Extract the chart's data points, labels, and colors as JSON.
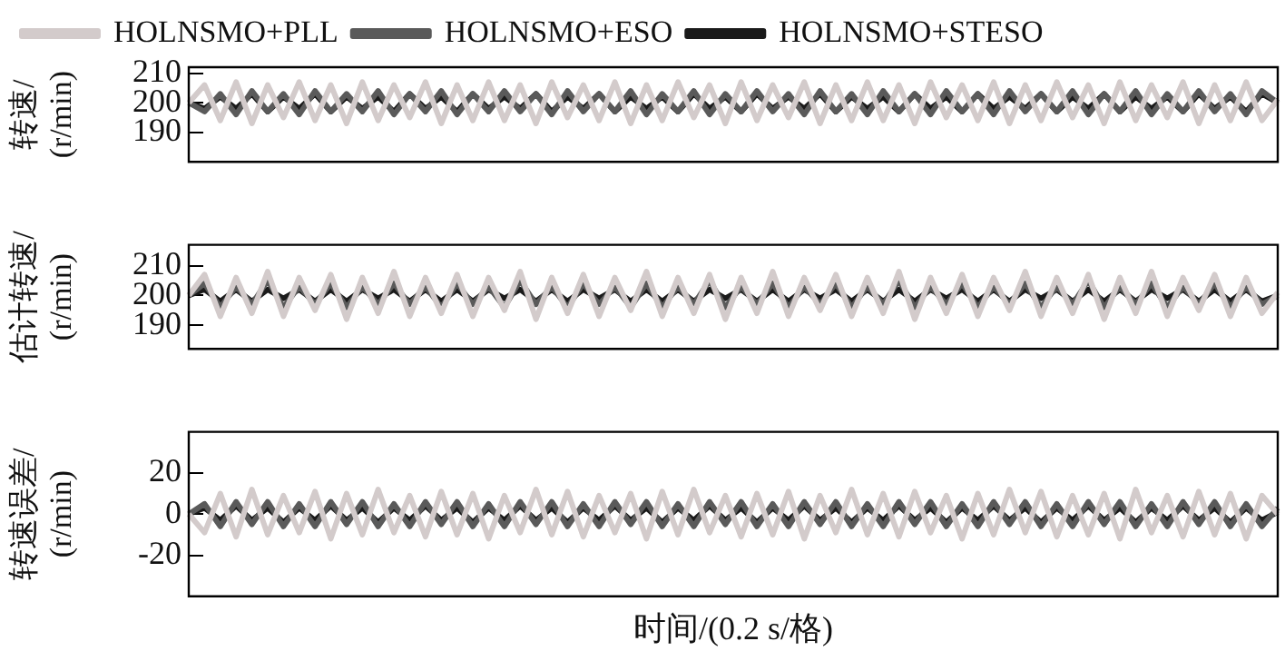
{
  "chart_data": [
    {
      "type": "line",
      "ylabel": "转速/\n(r/min)",
      "categories": [
        null,
        null,
        null,
        null,
        null,
        null,
        null,
        null,
        null,
        null,
        null,
        null,
        null,
        null,
        null,
        null,
        null,
        null,
        null,
        null,
        null,
        null,
        null,
        null,
        null,
        null,
        null,
        null,
        null,
        null,
        null,
        null,
        null,
        null,
        null,
        null,
        null,
        null,
        null,
        null,
        null,
        null,
        null,
        null,
        null,
        null,
        null,
        null,
        null,
        null,
        null,
        null,
        null,
        null,
        null,
        null,
        null,
        null,
        null,
        null,
        null,
        null,
        null,
        null,
        null,
        null,
        null,
        null,
        null,
        null
      ],
      "ylim": [
        180,
        212
      ],
      "yticks": [
        190,
        200,
        210
      ],
      "tick_labels": "y",
      "legend": "top",
      "marker": "none",
      "line_style": "solid",
      "series": [
        {
          "name": "HOLNSMO+PLL",
          "color": "#d3cbcb",
          "values": [
            200,
            206,
            194,
            207,
            193,
            206,
            195,
            207,
            194,
            206,
            193,
            207,
            194,
            206,
            195,
            207,
            193,
            206,
            194,
            207,
            194,
            206,
            193,
            207,
            195,
            206,
            194,
            207,
            193,
            206,
            194,
            207,
            195,
            206,
            193,
            207,
            194,
            206,
            195,
            207,
            193,
            206,
            194,
            207,
            194,
            206,
            193,
            207,
            195,
            206,
            194,
            207,
            193,
            206,
            194,
            207,
            195,
            206,
            193,
            207,
            194,
            206,
            195,
            207,
            193,
            206,
            194,
            207,
            194,
            201
          ]
        },
        {
          "name": "HOLNSMO+ESO",
          "color": "#5a5a5a",
          "values": [
            200,
            197,
            203,
            196,
            204,
            197,
            203,
            196,
            204,
            197,
            203,
            197,
            204,
            196,
            203,
            197,
            204,
            196,
            203,
            197,
            204,
            197,
            203,
            196,
            204,
            197,
            203,
            197,
            204,
            196,
            203,
            197,
            204,
            196,
            203,
            197,
            204,
            197,
            203,
            196,
            204,
            197,
            203,
            196,
            204,
            197,
            203,
            196,
            204,
            197,
            203,
            196,
            204,
            197,
            203,
            197,
            204,
            196,
            203,
            197,
            204,
            196,
            203,
            197,
            204,
            197,
            203,
            196,
            204,
            200
          ]
        },
        {
          "name": "HOLNSMO+STESO",
          "color": "#1a1a1a",
          "values": [
            200,
            198,
            202,
            198,
            203,
            197,
            202,
            198,
            203,
            197,
            202,
            198,
            202,
            197,
            203,
            198,
            202,
            197,
            203,
            198,
            202,
            198,
            203,
            197,
            202,
            198,
            203,
            197,
            202,
            198,
            202,
            197,
            203,
            198,
            202,
            197,
            203,
            198,
            202,
            198,
            203,
            197,
            202,
            198,
            202,
            197,
            203,
            198,
            202,
            197,
            203,
            198,
            202,
            198,
            203,
            197,
            202,
            198,
            203,
            197,
            202,
            198,
            202,
            197,
            203,
            198,
            202,
            197,
            203,
            200
          ]
        }
      ]
    },
    {
      "type": "line",
      "ylabel": "估计转速/\n(r/min)",
      "categories": [
        null,
        null,
        null,
        null,
        null,
        null,
        null,
        null,
        null,
        null,
        null,
        null,
        null,
        null,
        null,
        null,
        null,
        null,
        null,
        null,
        null,
        null,
        null,
        null,
        null,
        null,
        null,
        null,
        null,
        null,
        null,
        null,
        null,
        null,
        null,
        null,
        null,
        null,
        null,
        null,
        null,
        null,
        null,
        null,
        null,
        null,
        null,
        null,
        null,
        null,
        null,
        null,
        null,
        null,
        null,
        null,
        null,
        null,
        null,
        null,
        null,
        null,
        null,
        null,
        null,
        null,
        null,
        null,
        null,
        null
      ],
      "ylim": [
        182,
        217
      ],
      "yticks": [
        190,
        200,
        210
      ],
      "tick_labels": "y",
      "marker": "none",
      "line_style": "solid",
      "series": [
        {
          "color": "#d3cbcb",
          "values": [
            200,
            207,
            193,
            206,
            194,
            208,
            193,
            206,
            195,
            207,
            192,
            206,
            194,
            208,
            193,
            206,
            194,
            207,
            193,
            206,
            195,
            208,
            192,
            206,
            194,
            207,
            193,
            206,
            195,
            208,
            193,
            206,
            194,
            207,
            192,
            206,
            194,
            208,
            193,
            206,
            195,
            207,
            193,
            206,
            194,
            208,
            192,
            206,
            194,
            207,
            193,
            206,
            195,
            208,
            193,
            206,
            194,
            207,
            192,
            206,
            194,
            208,
            193,
            206,
            195,
            207,
            193,
            206,
            194,
            201
          ]
        },
        {
          "color": "#5a5a5a",
          "values": [
            200,
            204,
            196,
            203,
            197,
            205,
            196,
            203,
            197,
            204,
            196,
            203,
            197,
            204,
            197,
            203,
            196,
            204,
            197,
            203,
            196,
            205,
            197,
            203,
            196,
            204,
            197,
            203,
            196,
            204,
            196,
            203,
            197,
            205,
            196,
            203,
            197,
            204,
            196,
            203,
            197,
            204,
            196,
            203,
            197,
            205,
            196,
            203,
            197,
            204,
            196,
            203,
            197,
            204,
            196,
            203,
            197,
            205,
            196,
            203,
            197,
            204,
            196,
            203,
            197,
            204,
            196,
            203,
            197,
            200
          ]
        },
        {
          "color": "#1a1a1a",
          "values": [
            200,
            202,
            198,
            202,
            198,
            202,
            199,
            202,
            198,
            202,
            198,
            202,
            199,
            202,
            198,
            202,
            198,
            202,
            198,
            202,
            199,
            202,
            198,
            202,
            198,
            202,
            199,
            202,
            198,
            202,
            198,
            202,
            198,
            202,
            199,
            202,
            198,
            202,
            198,
            202,
            199,
            202,
            198,
            202,
            198,
            202,
            198,
            202,
            199,
            202,
            198,
            202,
            198,
            202,
            199,
            202,
            198,
            202,
            198,
            202,
            198,
            202,
            199,
            202,
            198,
            202,
            198,
            202,
            198,
            200
          ]
        }
      ]
    },
    {
      "type": "line",
      "ylabel": "转速误差/\n(r/min)",
      "xlabel": "时间/(0.2 s/格)",
      "categories": [
        null,
        null,
        null,
        null,
        null,
        null,
        null,
        null,
        null,
        null,
        null,
        null,
        null,
        null,
        null,
        null,
        null,
        null,
        null,
        null,
        null,
        null,
        null,
        null,
        null,
        null,
        null,
        null,
        null,
        null,
        null,
        null,
        null,
        null,
        null,
        null,
        null,
        null,
        null,
        null,
        null,
        null,
        null,
        null,
        null,
        null,
        null,
        null,
        null,
        null,
        null,
        null,
        null,
        null,
        null,
        null,
        null,
        null,
        null,
        null,
        null,
        null,
        null,
        null,
        null,
        null,
        null,
        null,
        null,
        null
      ],
      "ylim": [
        -40,
        40
      ],
      "yticks": [
        -20,
        0,
        20
      ],
      "tick_labels": "y",
      "marker": "none",
      "line_style": "solid",
      "series": [
        {
          "color": "#d3cbcb",
          "values": [
            0,
            -9,
            10,
            -11,
            12,
            -10,
            9,
            -9,
            11,
            -12,
            10,
            -10,
            12,
            -9,
            9,
            -11,
            11,
            -10,
            10,
            -12,
            9,
            -9,
            12,
            -10,
            11,
            -11,
            9,
            -9,
            10,
            -12,
            11,
            -10,
            12,
            -9,
            9,
            -11,
            10,
            -10,
            11,
            -12,
            9,
            -9,
            12,
            -10,
            10,
            -11,
            11,
            -9,
            9,
            -12,
            10,
            -10,
            12,
            -9,
            11,
            -11,
            9,
            -10,
            10,
            -12,
            12,
            -9,
            9,
            -11,
            11,
            -10,
            10,
            -12,
            9,
            0
          ]
        },
        {
          "color": "#5a5a5a",
          "values": [
            0,
            5,
            -6,
            6,
            -5,
            6,
            -6,
            5,
            -6,
            6,
            -5,
            6,
            -6,
            5,
            -6,
            6,
            -5,
            6,
            -6,
            5,
            -6,
            6,
            -5,
            6,
            -6,
            5,
            -6,
            6,
            -5,
            6,
            -6,
            5,
            -6,
            6,
            -5,
            6,
            -6,
            5,
            -6,
            6,
            -5,
            6,
            -6,
            5,
            -6,
            6,
            -5,
            6,
            -6,
            5,
            -6,
            6,
            -5,
            6,
            -6,
            5,
            -6,
            6,
            -5,
            6,
            -6,
            5,
            -6,
            6,
            -5,
            6,
            -6,
            5,
            -6,
            3
          ]
        },
        {
          "color": "#1a1a1a",
          "values": [
            0,
            3,
            -3,
            4,
            -3,
            3,
            -4,
            3,
            -3,
            4,
            -3,
            3,
            -4,
            3,
            -3,
            4,
            -3,
            3,
            -4,
            3,
            -3,
            4,
            -3,
            3,
            -4,
            3,
            -3,
            4,
            -3,
            3,
            -4,
            3,
            -3,
            4,
            -3,
            3,
            -4,
            3,
            -3,
            4,
            -3,
            3,
            -4,
            3,
            -3,
            4,
            -3,
            3,
            -4,
            3,
            -3,
            4,
            -3,
            3,
            -4,
            3,
            -3,
            4,
            -3,
            3,
            -4,
            3,
            -3,
            4,
            -3,
            3,
            -4,
            3,
            -3,
            1
          ]
        }
      ]
    }
  ]
}
